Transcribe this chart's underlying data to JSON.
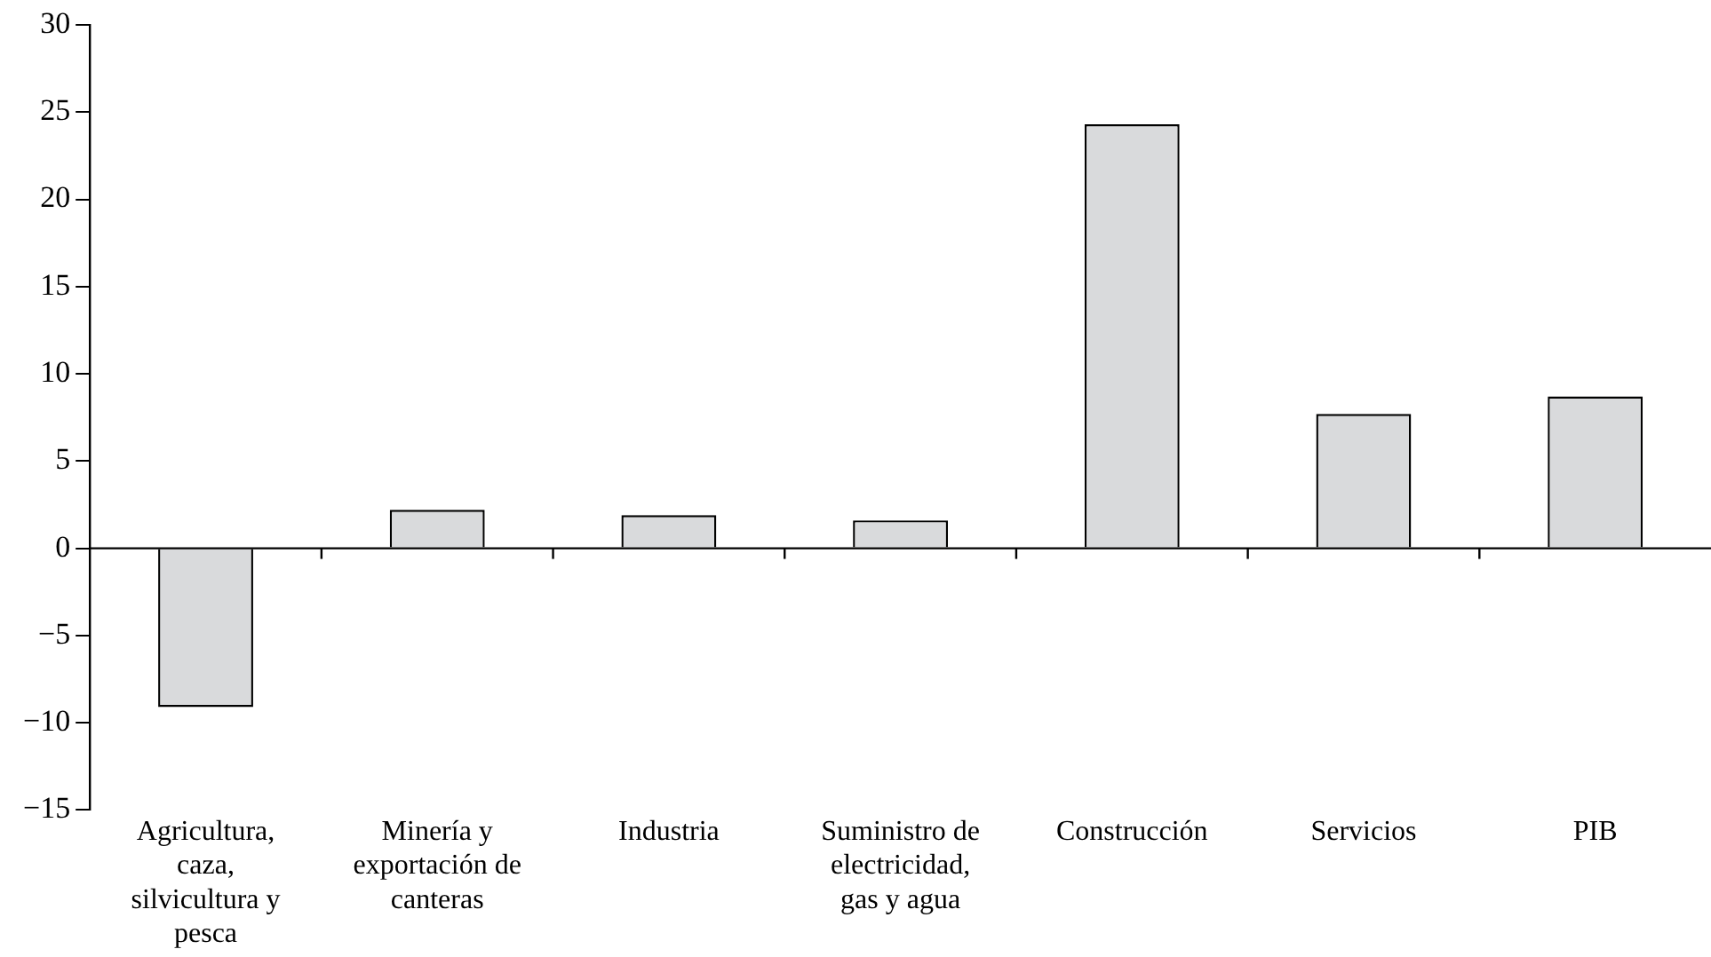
{
  "chart_data": {
    "type": "bar",
    "categories": [
      "Agricultura, caza, silvicultura y pesca",
      "Minería y exportación de canteras",
      "Industria",
      "Suministro de electricidad, gas y agua",
      "Construcción",
      "Servicios",
      "PIB"
    ],
    "values": [
      -9.1,
      2.2,
      1.9,
      1.6,
      24.3,
      7.7,
      8.7
    ],
    "color": "#d9dadc",
    "ylim": [
      -15,
      30
    ],
    "yticks": [
      {
        "value": -15,
        "label": "−15"
      },
      {
        "value": -10,
        "label": "−10"
      },
      {
        "value": -5,
        "label": "−5"
      },
      0,
      5,
      10,
      15,
      20,
      25,
      30
    ],
    "legend": false
  }
}
